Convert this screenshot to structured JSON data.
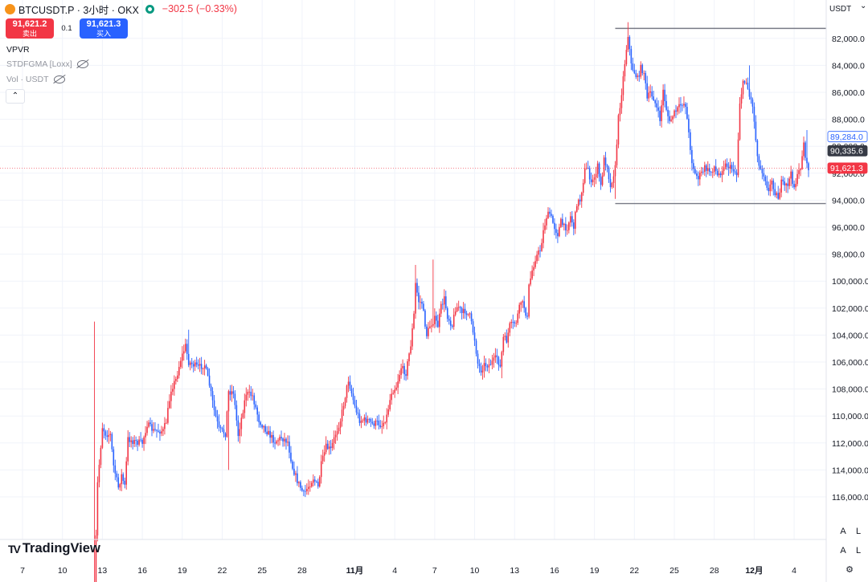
{
  "header": {
    "symbol_line": "BTCUSDT.P · 3小时 · OKX",
    "change": "−302.5 (−0.33%)"
  },
  "trade": {
    "sell_price": "91,621.2",
    "sell_label": "卖出",
    "spread": "0.1",
    "buy_price": "91,621.3",
    "buy_label": "买入"
  },
  "indicators": [
    "VPVR",
    "STDFGMA [Loxx]",
    "Vol · USDT"
  ],
  "currency": "USDT",
  "logo_text": "TradingView",
  "colors": {
    "up": "#f23645",
    "down": "#2962ff",
    "grid": "#f0f3fa",
    "hline": "#787b86"
  },
  "scale_buttons": [
    "A",
    "L",
    "A",
    "L"
  ],
  "chart_data": {
    "type": "candlestick",
    "y_axis": {
      "inverted": true,
      "range": [
        80500,
        118000
      ],
      "ticks": [
        82000,
        84000,
        86000,
        88000,
        90000,
        92000,
        94000,
        96000,
        98000,
        100000,
        102000,
        104000,
        106000,
        108000,
        110000,
        112000,
        114000,
        116000
      ]
    },
    "x_ticks": [
      {
        "label": "7",
        "index": 0
      },
      {
        "label": "10",
        "index": 25
      },
      {
        "label": "13",
        "index": 50
      },
      {
        "label": "16",
        "index": 75
      },
      {
        "label": "19",
        "index": 100
      },
      {
        "label": "22",
        "index": 125
      },
      {
        "label": "25",
        "index": 150
      },
      {
        "label": "28",
        "index": 175
      },
      {
        "label": "11月",
        "index": 208
      },
      {
        "label": "4",
        "index": 233
      },
      {
        "label": "7",
        "index": 258
      },
      {
        "label": "10",
        "index": 283
      },
      {
        "label": "13",
        "index": 308
      },
      {
        "label": "16",
        "index": 333
      },
      {
        "label": "19",
        "index": 358
      },
      {
        "label": "22",
        "index": 383
      },
      {
        "label": "25",
        "index": 408
      },
      {
        "label": "28",
        "index": 433
      },
      {
        "label": "12月",
        "index": 458
      },
      {
        "label": "4",
        "index": 483
      }
    ],
    "price_labels": [
      {
        "value": "89,284.0",
        "price": 89284,
        "style": "outline"
      },
      {
        "value": "90,335.6",
        "price": 90335.6,
        "style": "dark"
      },
      {
        "value": "91,621.3",
        "price": 91621.3,
        "style": "red"
      }
    ],
    "horizontal_lines": [
      {
        "price": 81260,
        "from_index": 371
      },
      {
        "price": 94250,
        "from_index": 371
      }
    ],
    "current_price": 91621.3,
    "series_start_index": 45,
    "anchors": [
      [
        45,
        123000
      ],
      [
        47,
        115000
      ],
      [
        50,
        110800
      ],
      [
        52,
        111300
      ],
      [
        55,
        111400
      ],
      [
        57,
        113700
      ],
      [
        60,
        115300
      ],
      [
        62,
        114400
      ],
      [
        64,
        115200
      ],
      [
        66,
        111700
      ],
      [
        70,
        111900
      ],
      [
        75,
        112000
      ],
      [
        78,
        110600
      ],
      [
        82,
        111100
      ],
      [
        88,
        111100
      ],
      [
        90,
        110400
      ],
      [
        93,
        108000
      ],
      [
        96,
        107300
      ],
      [
        99,
        105800
      ],
      [
        102,
        104800
      ],
      [
        104,
        106000
      ],
      [
        110,
        106400
      ],
      [
        114,
        106200
      ],
      [
        117,
        107700
      ],
      [
        120,
        109600
      ],
      [
        123,
        111000
      ],
      [
        127,
        111300
      ],
      [
        129,
        108200
      ],
      [
        132,
        108200
      ],
      [
        135,
        111400
      ],
      [
        140,
        108300
      ],
      [
        144,
        108500
      ],
      [
        148,
        110300
      ],
      [
        151,
        110800
      ],
      [
        154,
        111300
      ],
      [
        158,
        111900
      ],
      [
        162,
        111600
      ],
      [
        166,
        111900
      ],
      [
        169,
        113800
      ],
      [
        172,
        114800
      ],
      [
        176,
        115800
      ],
      [
        179,
        115200
      ],
      [
        182,
        114600
      ],
      [
        185,
        115300
      ],
      [
        187,
        113600
      ],
      [
        190,
        112300
      ],
      [
        193,
        112500
      ],
      [
        196,
        111300
      ],
      [
        199,
        110300
      ],
      [
        202,
        108500
      ],
      [
        204,
        107300
      ],
      [
        206,
        108300
      ],
      [
        208,
        109300
      ],
      [
        211,
        110300
      ],
      [
        214,
        110300
      ],
      [
        216,
        110300
      ],
      [
        219,
        110600
      ],
      [
        222,
        110500
      ],
      [
        225,
        110700
      ],
      [
        228,
        110000
      ],
      [
        231,
        108200
      ],
      [
        234,
        107800
      ],
      [
        237,
        106400
      ],
      [
        240,
        106800
      ],
      [
        243,
        104700
      ],
      [
        245,
        102500
      ],
      [
        246,
        100200
      ],
      [
        248,
        101500
      ],
      [
        250,
        101600
      ],
      [
        253,
        104000
      ],
      [
        255,
        103300
      ],
      [
        258,
        102800
      ],
      [
        260,
        103300
      ],
      [
        262,
        101900
      ],
      [
        264,
        101300
      ],
      [
        266,
        102600
      ],
      [
        269,
        103300
      ],
      [
        271,
        102000
      ],
      [
        273,
        101900
      ],
      [
        275,
        102400
      ],
      [
        277,
        102200
      ],
      [
        280,
        102600
      ],
      [
        283,
        104300
      ],
      [
        285,
        106100
      ],
      [
        287,
        106600
      ],
      [
        289,
        106200
      ],
      [
        292,
        106200
      ],
      [
        295,
        105900
      ],
      [
        297,
        105600
      ],
      [
        299,
        106400
      ],
      [
        301,
        104200
      ],
      [
        303,
        104400
      ],
      [
        305,
        103300
      ],
      [
        307,
        103200
      ],
      [
        309,
        103000
      ],
      [
        312,
        101500
      ],
      [
        314,
        101900
      ],
      [
        316,
        102800
      ],
      [
        317,
        100400
      ],
      [
        319,
        99200
      ],
      [
        321,
        98300
      ],
      [
        324,
        97700
      ],
      [
        326,
        96300
      ],
      [
        328,
        95200
      ],
      [
        330,
        95000
      ],
      [
        333,
        96000
      ],
      [
        335,
        96500
      ],
      [
        337,
        95600
      ],
      [
        339,
        96000
      ],
      [
        341,
        96000
      ],
      [
        343,
        95200
      ],
      [
        345,
        96000
      ],
      [
        347,
        94200
      ],
      [
        349,
        94000
      ],
      [
        352,
        91800
      ],
      [
        354,
        91600
      ],
      [
        356,
        92900
      ],
      [
        358,
        92300
      ],
      [
        360,
        91500
      ],
      [
        362,
        93000
      ],
      [
        364,
        91000
      ],
      [
        366,
        91400
      ],
      [
        368,
        93100
      ],
      [
        369,
        92500
      ],
      [
        371,
        91600
      ],
      [
        373,
        87900
      ],
      [
        375,
        86000
      ],
      [
        377,
        83800
      ],
      [
        379,
        81700
      ],
      [
        381,
        84000
      ],
      [
        383,
        84500
      ],
      [
        385,
        85000
      ],
      [
        387,
        84200
      ],
      [
        389,
        84500
      ],
      [
        391,
        86500
      ],
      [
        393,
        86000
      ],
      [
        395,
        86400
      ],
      [
        397,
        87200
      ],
      [
        399,
        88000
      ],
      [
        401,
        85900
      ],
      [
        403,
        87200
      ],
      [
        405,
        88300
      ],
      [
        407,
        87700
      ],
      [
        409,
        87400
      ],
      [
        411,
        87100
      ],
      [
        413,
        86800
      ],
      [
        415,
        86900
      ],
      [
        417,
        89100
      ],
      [
        419,
        91100
      ],
      [
        421,
        92100
      ],
      [
        423,
        92300
      ],
      [
        425,
        92000
      ],
      [
        427,
        91600
      ],
      [
        429,
        91800
      ],
      [
        431,
        91900
      ],
      [
        433,
        91500
      ],
      [
        435,
        92200
      ],
      [
        437,
        91900
      ],
      [
        439,
        91400
      ],
      [
        441,
        91400
      ],
      [
        443,
        91600
      ],
      [
        445,
        91700
      ],
      [
        447,
        92100
      ],
      [
        449,
        86700
      ],
      [
        451,
        85400
      ],
      [
        453,
        85100
      ],
      [
        455,
        86300
      ],
      [
        457,
        86900
      ],
      [
        459,
        89500
      ],
      [
        461,
        91500
      ],
      [
        463,
        91800
      ],
      [
        465,
        92400
      ],
      [
        467,
        93400
      ],
      [
        469,
        92500
      ],
      [
        471,
        93400
      ],
      [
        473,
        93800
      ],
      [
        475,
        92700
      ],
      [
        477,
        93000
      ],
      [
        479,
        92800
      ],
      [
        481,
        92100
      ],
      [
        483,
        93000
      ],
      [
        485,
        92300
      ],
      [
        487,
        91500
      ],
      [
        489,
        89800
      ],
      [
        491,
        91500
      ],
      [
        492,
        91620
      ]
    ],
    "spikes": [
      [
        45,
        103000
      ],
      [
        104,
        103600
      ],
      [
        129,
        114000
      ],
      [
        246,
        98800
      ],
      [
        257,
        98400
      ],
      [
        300,
        107200
      ],
      [
        371,
        93900
      ],
      [
        379,
        80800
      ],
      [
        455,
        84000
      ],
      [
        491,
        88800
      ]
    ]
  }
}
